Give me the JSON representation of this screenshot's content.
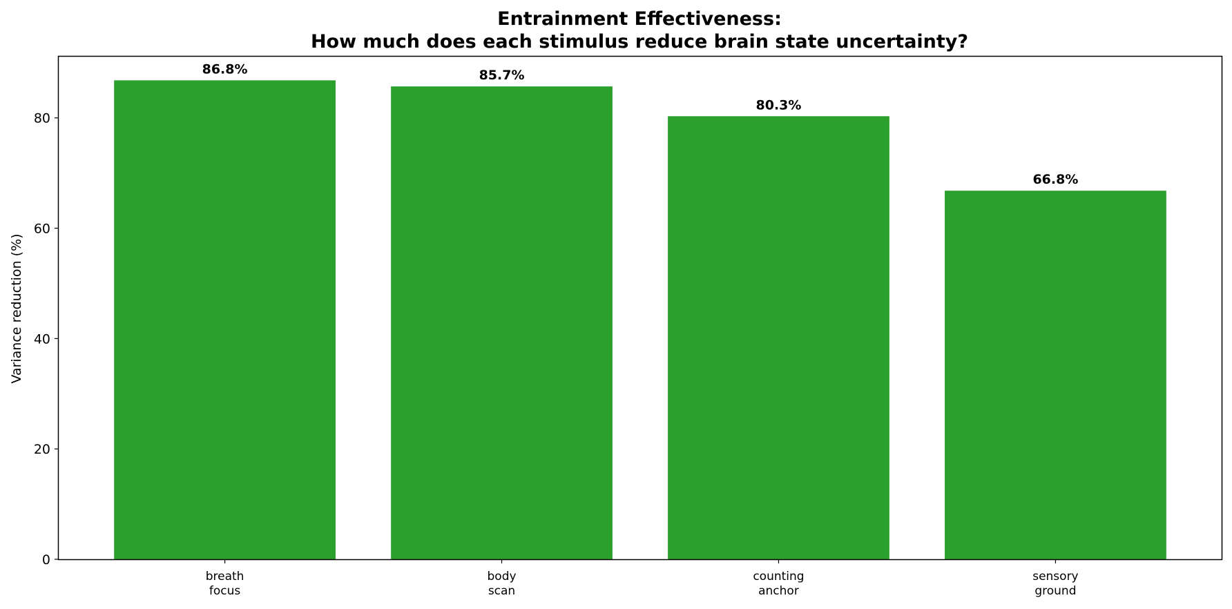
{
  "chart_data": {
    "type": "bar",
    "title": [
      "Entrainment Effectiveness:",
      "How much does each stimulus reduce brain state uncertainty?"
    ],
    "xlabel": "",
    "ylabel": "Variance reduction (%)",
    "categories": [
      [
        "breath",
        "focus"
      ],
      [
        "body",
        "scan"
      ],
      [
        "counting",
        "anchor"
      ],
      [
        "sensory",
        "ground"
      ]
    ],
    "values": [
      86.8,
      85.7,
      80.3,
      66.8
    ],
    "data_labels": [
      "86.8%",
      "85.7%",
      "80.3%",
      "66.8%"
    ],
    "yticks": [
      0,
      20,
      40,
      60,
      80
    ],
    "ylim": [
      0,
      91.1
    ],
    "grid": false,
    "legend": "none",
    "bar_color": "#2ca02c"
  }
}
